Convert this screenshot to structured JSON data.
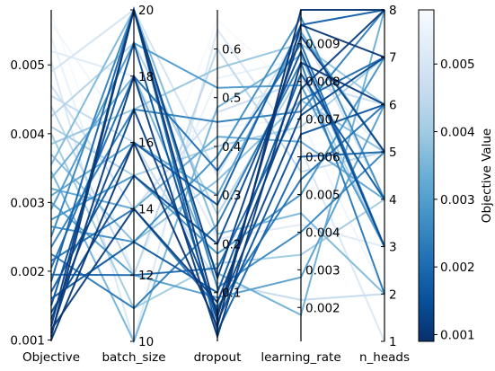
{
  "chart_data": {
    "type": "parallel_coordinates",
    "colormap": "Blues_r",
    "colorbar": {
      "label": "Objective Value",
      "range": [
        0.0009,
        0.0058
      ],
      "ticks": [
        {
          "value": 0.001,
          "label": "0.001"
        },
        {
          "value": 0.002,
          "label": "0.002"
        },
        {
          "value": 0.003,
          "label": "0.003"
        },
        {
          "value": 0.004,
          "label": "0.004"
        },
        {
          "value": 0.005,
          "label": "0.005"
        }
      ]
    },
    "axes": [
      {
        "name": "Objective",
        "range": [
          0.00098,
          0.0058
        ],
        "ticks": [
          {
            "value": 0.001,
            "label": "0.001"
          },
          {
            "value": 0.002,
            "label": "0.002"
          },
          {
            "value": 0.003,
            "label": "0.003"
          },
          {
            "value": 0.004,
            "label": "0.004"
          },
          {
            "value": 0.005,
            "label": "0.005"
          }
        ]
      },
      {
        "name": "batch_size",
        "range": [
          10,
          20
        ],
        "ticks": [
          {
            "value": 10,
            "label": "10"
          },
          {
            "value": 12,
            "label": "12"
          },
          {
            "value": 14,
            "label": "14"
          },
          {
            "value": 16,
            "label": "16"
          },
          {
            "value": 18,
            "label": "18"
          },
          {
            "value": 20,
            "label": "20"
          }
        ]
      },
      {
        "name": "dropout",
        "range": [
          0.0,
          0.68
        ],
        "ticks": [
          {
            "value": 0.1,
            "label": "0.1"
          },
          {
            "value": 0.2,
            "label": "0.2"
          },
          {
            "value": 0.3,
            "label": "0.3"
          },
          {
            "value": 0.4,
            "label": "0.4"
          },
          {
            "value": 0.5,
            "label": "0.5"
          },
          {
            "value": 0.6,
            "label": "0.6"
          }
        ]
      },
      {
        "name": "learning_rate",
        "range": [
          0.0011,
          0.0099
        ],
        "ticks": [
          {
            "value": 0.002,
            "label": "0.002"
          },
          {
            "value": 0.003,
            "label": "0.003"
          },
          {
            "value": 0.004,
            "label": "0.004"
          },
          {
            "value": 0.005,
            "label": "0.005"
          },
          {
            "value": 0.006,
            "label": "0.006"
          },
          {
            "value": 0.007,
            "label": "0.007"
          },
          {
            "value": 0.008,
            "label": "0.008"
          },
          {
            "value": 0.009,
            "label": "0.009"
          }
        ]
      },
      {
        "name": "n_heads",
        "range": [
          1,
          8
        ],
        "ticks": [
          {
            "value": 1,
            "label": "1"
          },
          {
            "value": 2,
            "label": "2"
          },
          {
            "value": 3,
            "label": "3"
          },
          {
            "value": 4,
            "label": "4"
          },
          {
            "value": 5,
            "label": "5"
          },
          {
            "value": 6,
            "label": "6"
          },
          {
            "value": 7,
            "label": "7"
          },
          {
            "value": 8,
            "label": "8"
          }
        ]
      }
    ],
    "trials": [
      [
        0.001,
        16,
        0.03,
        0.0099,
        8
      ],
      [
        0.00105,
        20,
        0.05,
        0.0095,
        7
      ],
      [
        0.0011,
        18,
        0.01,
        0.0085,
        6
      ],
      [
        0.00115,
        14,
        0.08,
        0.0078,
        8
      ],
      [
        0.0012,
        20,
        0.13,
        0.0092,
        5
      ],
      [
        0.0013,
        17,
        0.06,
        0.0071,
        7
      ],
      [
        0.0014,
        15,
        0.2,
        0.0088,
        3
      ],
      [
        0.0015,
        19,
        0.04,
        0.0066,
        6
      ],
      [
        0.0016,
        13,
        0.1,
        0.0082,
        4
      ],
      [
        0.0017,
        16,
        0.28,
        0.0095,
        8
      ],
      [
        0.00185,
        20,
        0.02,
        0.006,
        5
      ],
      [
        0.00195,
        12,
        0.15,
        0.0075,
        7
      ],
      [
        0.00205,
        18,
        0.35,
        0.009,
        3
      ],
      [
        0.00215,
        14,
        0.07,
        0.0054,
        6
      ],
      [
        0.00225,
        11,
        0.24,
        0.0085,
        2
      ],
      [
        0.00235,
        17,
        0.45,
        0.0072,
        8
      ],
      [
        0.0025,
        20,
        0.11,
        0.004,
        5
      ],
      [
        0.00265,
        13,
        0.38,
        0.0097,
        4
      ],
      [
        0.00275,
        15,
        0.18,
        0.005,
        7
      ],
      [
        0.0029,
        19,
        0.52,
        0.0079,
        3
      ],
      [
        0.003,
        12,
        0.09,
        0.0028,
        6
      ],
      [
        0.0031,
        16,
        0.3,
        0.0093,
        5
      ],
      [
        0.0032,
        14,
        0.42,
        0.0064,
        4
      ],
      [
        0.00335,
        18,
        0.14,
        0.0018,
        8
      ],
      [
        0.00345,
        10,
        0.48,
        0.0087,
        3
      ],
      [
        0.00355,
        20,
        0.22,
        0.0045,
        2
      ],
      [
        0.0037,
        13,
        0.33,
        0.0075,
        5
      ],
      [
        0.00385,
        17,
        0.56,
        0.009,
        6
      ],
      [
        0.004,
        11,
        0.16,
        0.0034,
        4
      ],
      [
        0.0041,
        15,
        0.4,
        0.0068,
        7
      ],
      [
        0.00425,
        19,
        0.26,
        0.0082,
        3
      ],
      [
        0.0044,
        12,
        0.6,
        0.0056,
        5
      ],
      [
        0.00455,
        16,
        0.12,
        0.0022,
        2
      ],
      [
        0.0047,
        14,
        0.47,
        0.008,
        6
      ],
      [
        0.0049,
        20,
        0.34,
        0.0094,
        4
      ],
      [
        0.00505,
        10,
        0.64,
        0.0062,
        1
      ],
      [
        0.0052,
        18,
        0.21,
        0.0042,
        3
      ],
      [
        0.0054,
        12,
        0.54,
        0.0086,
        5
      ],
      [
        0.0056,
        16,
        0.44,
        0.007,
        2
      ],
      [
        0.00575,
        13,
        0.66,
        0.0076,
        4
      ]
    ]
  }
}
